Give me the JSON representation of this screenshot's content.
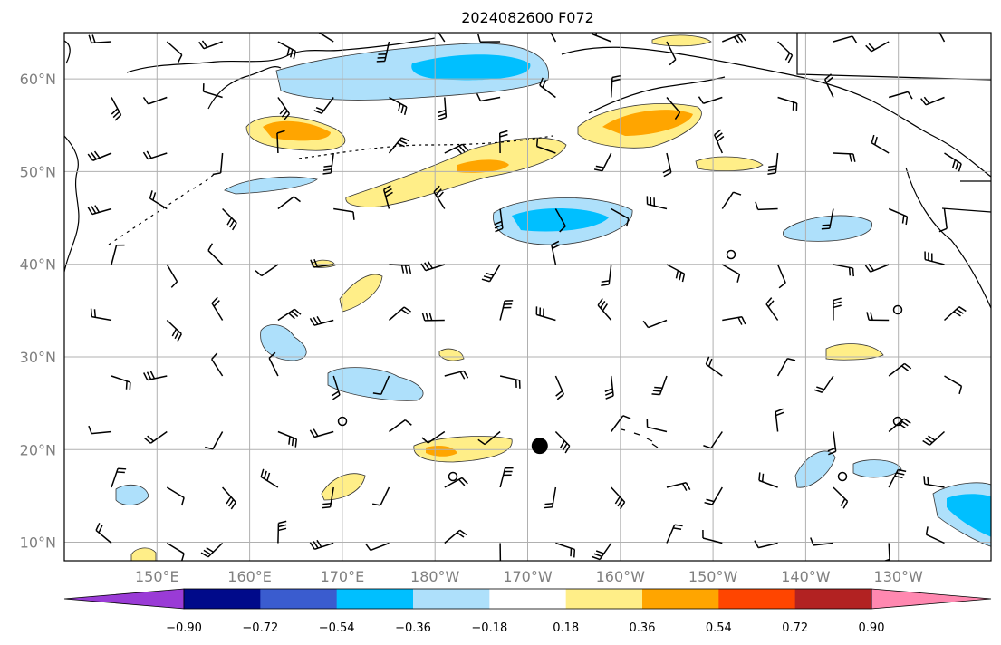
{
  "title": "2024082600 F072",
  "map": {
    "lat_labels": [
      "10°N",
      "20°N",
      "30°N",
      "40°N",
      "50°N",
      "60°N"
    ],
    "lon_labels": [
      "150°E",
      "160°E",
      "170°E",
      "180°W",
      "170°W",
      "160°W",
      "150°W",
      "140°W",
      "130°W"
    ],
    "extent": {
      "lon": [
        140,
        240
      ],
      "lat": [
        8,
        65
      ]
    },
    "grid": true,
    "marker": {
      "label": "",
      "lon": 191.3,
      "lat": 20.4
    }
  },
  "colorbar": {
    "tick_labels": [
      "−0.90",
      "−0.72",
      "−0.54",
      "−0.36",
      "−0.18",
      "0.18",
      "0.36",
      "0.54",
      "0.72",
      "0.90"
    ],
    "colors": [
      "#9a3bd6",
      "#000a8a",
      "#3a5ccf",
      "#00bfff",
      "#aee0fb",
      "#ffffff",
      "#ffee88",
      "#ffa500",
      "#ff4500",
      "#b22222",
      "#ff88b0"
    ]
  },
  "colors": {
    "land": "#000000",
    "grid": "#b0b0b0",
    "positive_weak": "#ffee88",
    "positive_mid": "#ffa500",
    "negative_weak": "#aee0fb",
    "negative_mid": "#00bfff"
  }
}
